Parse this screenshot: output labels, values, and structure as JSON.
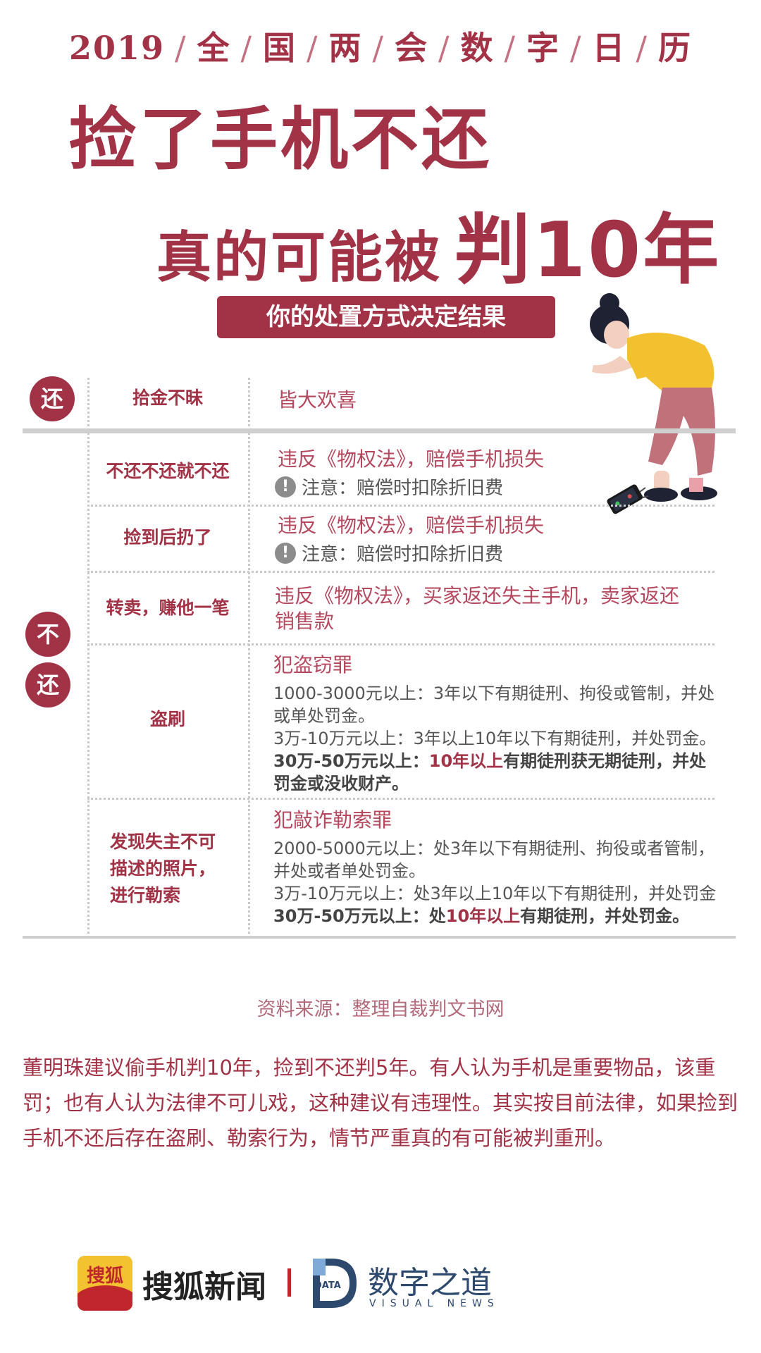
{
  "header": {
    "calendar": [
      "2019",
      "全",
      "国",
      "两",
      "会",
      "数",
      "字",
      "日",
      "历"
    ],
    "title_line1": "捡了手机不还",
    "title_line2_prefix": "真的可能被",
    "title_line2_emphasis": "判10年",
    "subtitle": "你的处置方式决定结果"
  },
  "table": {
    "return_label": "还",
    "not_return_label": [
      "不",
      "还"
    ],
    "rows": [
      {
        "category": "拾金不昧",
        "result": "皆大欢喜"
      },
      {
        "category": "不还不还就不还",
        "result": "违反《物权法》，赔偿手机损失",
        "note": "注意：赔偿时扣除折旧费"
      },
      {
        "category": "捡到后扔了",
        "result": "违反《物权法》，赔偿手机损失",
        "note": "注意：赔偿时扣除折旧费"
      },
      {
        "category": "转卖，赚他一笔",
        "result_lines": [
          "违反《物权法》，买家返还失主手机，卖家返还",
          "销售款"
        ]
      },
      {
        "category": "盗刷",
        "crime": "犯盗窃罪",
        "lines": [
          "1000-3000元以上：3年以下有期徒刑、拘役或管制，并处",
          "或单处罚金。",
          "3万-10万元以上：3年以上10年以下有期徒刑，并处罚金。"
        ],
        "bold_prefix": "30万-50万元以上：",
        "bold_red": "10年以上",
        "bold_suffix": "有期徒刑获无期徒刑，并处",
        "bold_line2": "罚金或没收财产。"
      },
      {
        "category_lines": [
          "发现失主不可",
          "描述的照片，",
          "进行勒索"
        ],
        "crime": "犯敲诈勒索罪",
        "lines": [
          "2000-5000元以上：处3年以下有期徒刑、拘役或者管制，",
          "并处或者单处罚金。",
          "3万-10万元以上：处3年以上10年以下有期徒刑，并处罚金"
        ],
        "bold_prefix": "30万-50万元以上：处",
        "bold_red": "10年以上",
        "bold_suffix": "有期徒刑，并处罚金。"
      }
    ]
  },
  "source": "资料来源：整理自裁判文书网",
  "paragraph": "董明珠建议偷手机判10年，捡到不还判5年。有人认为手机是重要物品，该重罚；也有人认为法律不可儿戏，这种建议有违理性。其实按目前法律，如果捡到手机不还后存在盗刷、勒索行为，情节严重真的有可能被判重刑。",
  "footer": {
    "sohu_logo_text": "搜狐",
    "sohu_name": "搜狐新闻",
    "data_logo_text": "DATA",
    "data_name": "数字之道",
    "data_sub": "VISUAL NEWS"
  },
  "colors": {
    "accent": "#a23246",
    "accent_light": "#b5485e",
    "gray": "#555555"
  }
}
